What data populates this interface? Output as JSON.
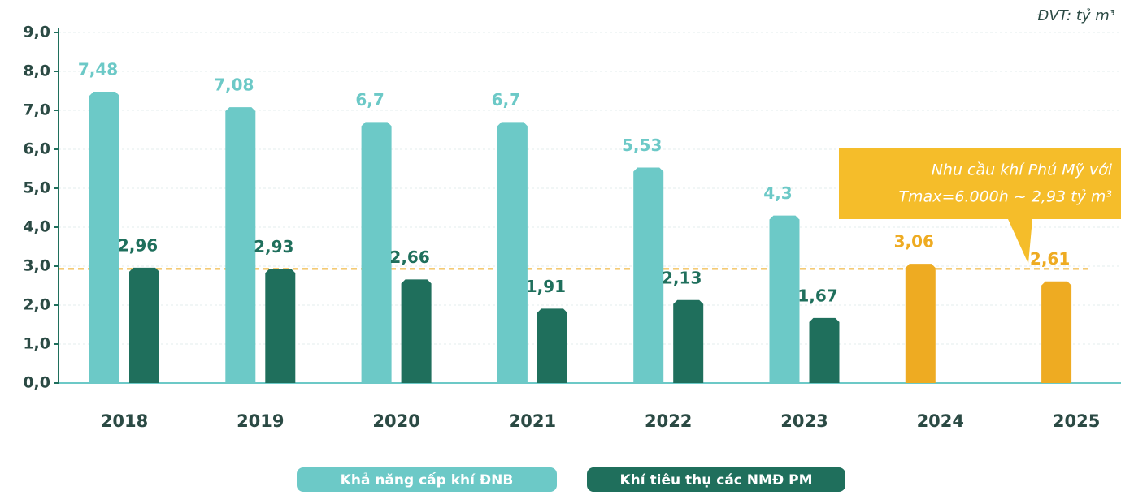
{
  "chart_data": {
    "type": "bar",
    "unit": "ĐVT: tỷ m³",
    "categories": [
      "2018",
      "2019",
      "2020",
      "2021",
      "2022",
      "2023",
      "2024",
      "2025"
    ],
    "series": [
      {
        "name": "Khả năng cấp khí ĐNB",
        "color": "#6cc9c7",
        "values": [
          7.48,
          7.08,
          6.7,
          6.7,
          5.53,
          4.3,
          null,
          null
        ],
        "value_labels": [
          "7,48",
          "7,08",
          "6,7",
          "6,7",
          "5,53",
          "4,3",
          null,
          null
        ]
      },
      {
        "name": "Khí tiêu thụ các NMĐ PM",
        "color": "#1f6f5c",
        "colors": [
          "#1f6f5c",
          "#1f6f5c",
          "#1f6f5c",
          "#1f6f5c",
          "#1f6f5c",
          "#1f6f5c",
          "#eeab22",
          "#eeab22"
        ],
        "values": [
          2.96,
          2.93,
          2.66,
          1.91,
          2.13,
          1.67,
          3.06,
          2.61
        ],
        "value_labels": [
          "2,96",
          "2,93",
          "2,66",
          "1,91",
          "2,13",
          "1,67",
          "3,06",
          "2,61"
        ]
      }
    ],
    "annotation": {
      "lines": [
        "Nhu cầu khí Phú Mỹ với",
        "Tmax=6.000h ~ 2,93 tỷ m³"
      ],
      "value": 2.93,
      "color": "#f5bd2a"
    },
    "ylim": [
      0,
      9
    ],
    "yticks": [
      {
        "value": 0,
        "label": "0,0"
      },
      {
        "value": 1,
        "label": "1,0"
      },
      {
        "value": 2,
        "label": "2,0"
      },
      {
        "value": 3,
        "label": "3,0"
      },
      {
        "value": 4,
        "label": "4,0"
      },
      {
        "value": 5,
        "label": "5,0"
      },
      {
        "value": 6,
        "label": "6,0"
      },
      {
        "value": 7,
        "label": "7,0"
      },
      {
        "value": 8,
        "label": "8,0"
      },
      {
        "value": 9,
        "label": "9,0"
      }
    ],
    "grid": true
  }
}
